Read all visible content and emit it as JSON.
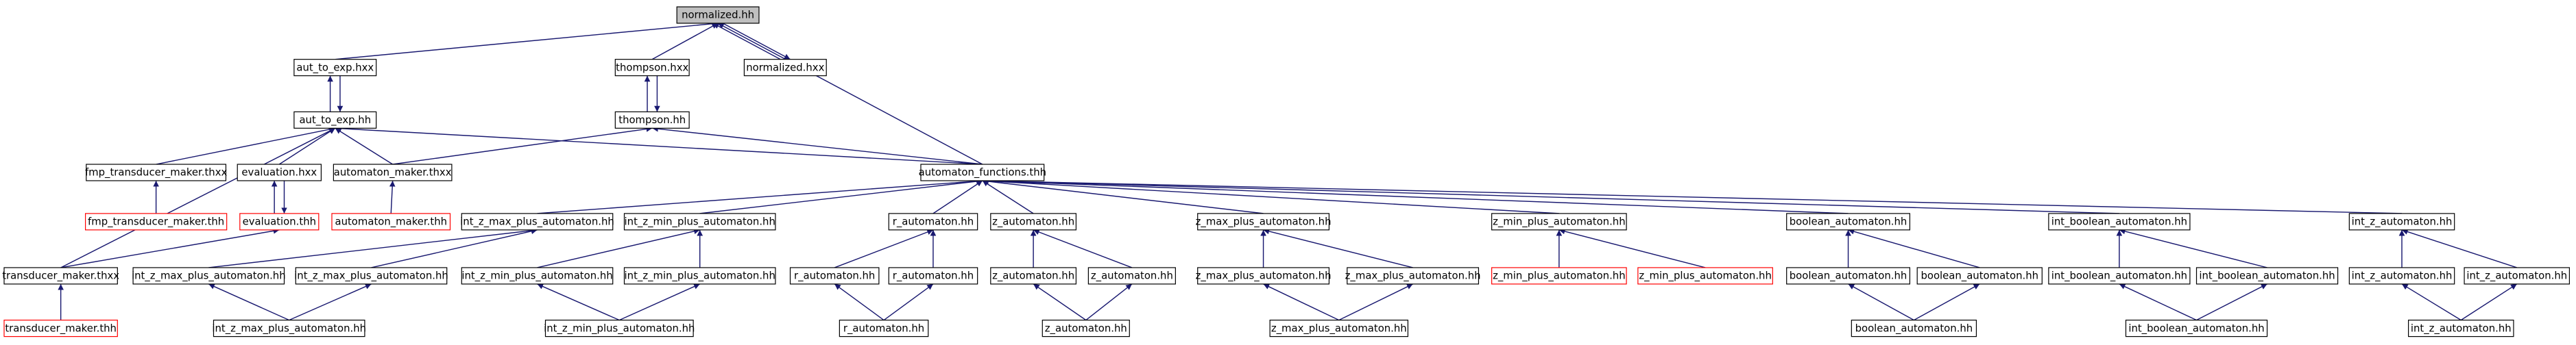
{
  "nodes": [
    {
      "label": "normalized.hh"
    },
    {
      "label": "aut_to_exp.hxx"
    },
    {
      "label": "thompson.hxx"
    },
    {
      "label": "normalized.hxx"
    },
    {
      "label": "aut_to_exp.hh"
    },
    {
      "label": "thompson.hh"
    },
    {
      "label": "fmp_transducer_maker.thxx"
    },
    {
      "label": "evaluation.hxx"
    },
    {
      "label": "automaton_maker.thxx"
    },
    {
      "label": "automaton_functions.thh"
    },
    {
      "label": "fmp_transducer_maker.thh"
    },
    {
      "label": "evaluation.thh"
    },
    {
      "label": "automaton_maker.thh"
    },
    {
      "label": "int_z_max_plus_automaton.hh"
    },
    {
      "label": "int_z_min_plus_automaton.hh"
    },
    {
      "label": "r_automaton.hh"
    },
    {
      "label": "z_automaton.hh"
    },
    {
      "label": "z_max_plus_automaton.hh"
    },
    {
      "label": "z_min_plus_automaton.hh"
    },
    {
      "label": "boolean_automaton.hh"
    },
    {
      "label": "int_boolean_automaton.hh"
    },
    {
      "label": "int_z_automaton.hh"
    },
    {
      "label": "transducer_maker.thxx"
    },
    {
      "label": "int_z_max_plus_automaton.hh"
    },
    {
      "label": "int_z_max_plus_automaton.hh"
    },
    {
      "label": "int_z_min_plus_automaton.hh"
    },
    {
      "label": "int_z_min_plus_automaton.hh"
    },
    {
      "label": "r_automaton.hh"
    },
    {
      "label": "r_automaton.hh"
    },
    {
      "label": "z_automaton.hh"
    },
    {
      "label": "z_automaton.hh"
    },
    {
      "label": "z_max_plus_automaton.hh"
    },
    {
      "label": "z_max_plus_automaton.hh"
    },
    {
      "label": "z_min_plus_automaton.hh"
    },
    {
      "label": "z_min_plus_automaton.hh"
    },
    {
      "label": "boolean_automaton.hh"
    },
    {
      "label": "boolean_automaton.hh"
    },
    {
      "label": "int_boolean_automaton.hh"
    },
    {
      "label": "int_boolean_automaton.hh"
    },
    {
      "label": "int_z_automaton.hh"
    },
    {
      "label": "int_z_automaton.hh"
    },
    {
      "label": "transducer_maker.thh"
    },
    {
      "label": "int_z_max_plus_automaton.hh"
    },
    {
      "label": "int_z_min_plus_automaton.hh"
    },
    {
      "label": "r_automaton.hh"
    },
    {
      "label": "z_automaton.hh"
    },
    {
      "label": "z_max_plus_automaton.hh"
    },
    {
      "label": "boolean_automaton.hh"
    },
    {
      "label": "int_boolean_automaton.hh"
    },
    {
      "label": "int_z_automaton.hh"
    }
  ]
}
